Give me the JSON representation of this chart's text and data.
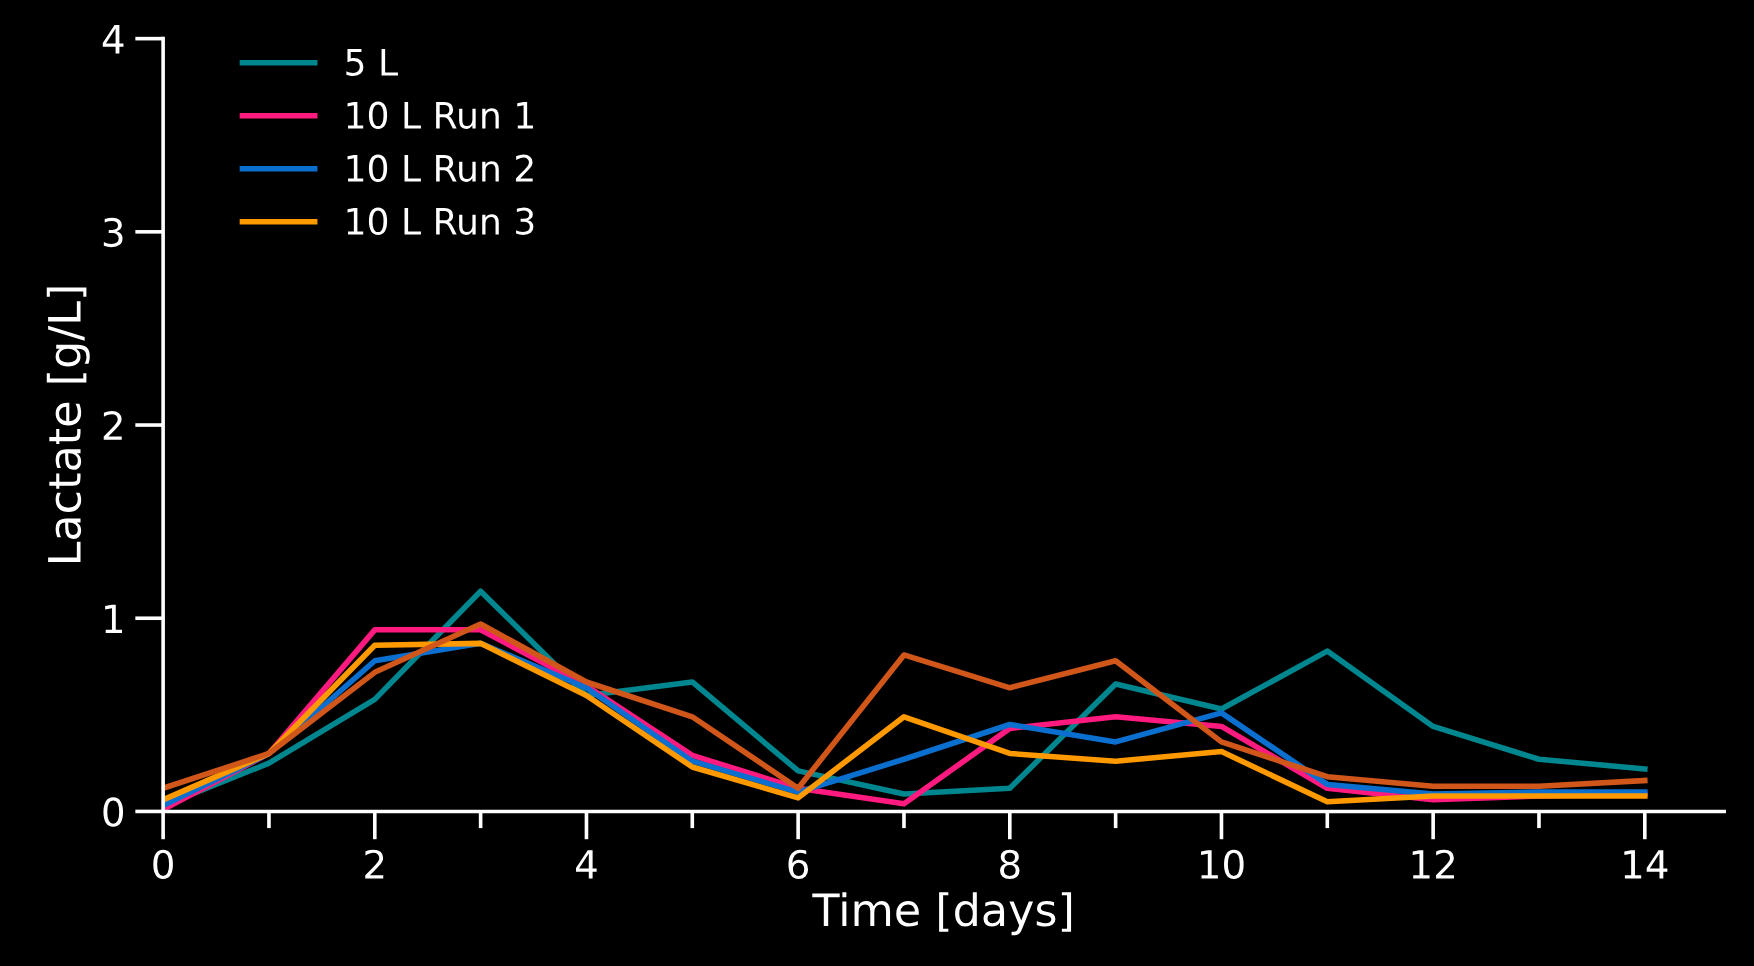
{
  "chart_data": {
    "type": "line",
    "xlabel": "Time [days]",
    "ylabel": "Lactate [g/L]",
    "x": [
      0,
      1,
      2,
      3,
      4,
      5,
      6,
      7,
      8,
      9,
      10,
      11,
      12,
      13,
      14
    ],
    "series": [
      {
        "name": "5 L",
        "color": "#00868f",
        "values": [
          0.03,
          0.25,
          0.58,
          1.14,
          0.6,
          0.67,
          0.21,
          0.09,
          0.12,
          0.66,
          0.53,
          0.83,
          0.44,
          0.27,
          0.22
        ]
      },
      {
        "name": "10 L Run 1",
        "color": "#ff1a7f",
        "values": [
          0.01,
          0.3,
          0.94,
          0.94,
          0.65,
          0.29,
          0.12,
          0.04,
          0.43,
          0.49,
          0.44,
          0.12,
          0.06,
          0.08,
          0.09
        ]
      },
      {
        "name": "10 L Run 2",
        "color": "#0a6fcf",
        "values": [
          0.03,
          0.3,
          0.78,
          0.87,
          0.64,
          0.26,
          0.1,
          0.27,
          0.45,
          0.36,
          0.51,
          0.14,
          0.09,
          0.1,
          0.1
        ]
      },
      {
        "name": "10 L Run 3",
        "color": "#ff9900",
        "values": [
          0.06,
          0.3,
          0.86,
          0.87,
          0.6,
          0.23,
          0.07,
          0.49,
          0.3,
          0.26,
          0.31,
          0.05,
          0.08,
          0.08,
          0.08
        ]
      },
      {
        "color": "#d0561a",
        "values": [
          0.12,
          0.3,
          0.72,
          0.97,
          0.67,
          0.49,
          0.12,
          0.81,
          0.64,
          0.78,
          0.36,
          0.18,
          0.13,
          0.13,
          0.16
        ]
      }
    ],
    "xlim": [
      0,
      14.75
    ],
    "ylim": [
      0,
      4
    ],
    "xticks": [
      0,
      {
        "value": 1,
        "label": null
      },
      2,
      {
        "value": 3,
        "label": null
      },
      4,
      {
        "value": 5,
        "label": null
      },
      6,
      {
        "value": 7,
        "label": null
      },
      8,
      {
        "value": 9,
        "label": null
      },
      10,
      {
        "value": 11,
        "label": null
      },
      12,
      {
        "value": 13,
        "label": null
      },
      14
    ],
    "yticks": [
      0,
      1,
      2,
      3,
      4
    ],
    "legend": "top left",
    "grid": false,
    "marker": "none",
    "line_style": "solid"
  }
}
